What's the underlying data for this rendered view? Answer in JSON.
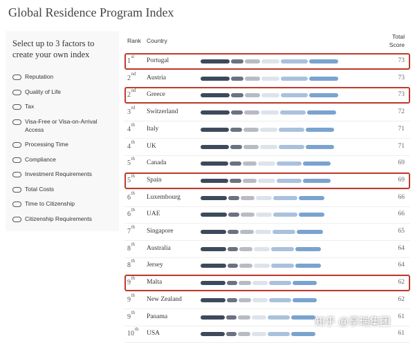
{
  "header": {
    "title": "Global Residence Program Index"
  },
  "sidebar": {
    "heading": "Select up to 3 factors to create your own index",
    "factors": [
      "Reputation",
      "Quality of Life",
      "Tax",
      "Visa-Free or Visa-on-Arrival Access",
      "Processing Time",
      "Compliance",
      "Investment Requirements",
      "Total Costs",
      "Time to Citizenship",
      "Citizenship Requirements"
    ]
  },
  "table": {
    "columns": [
      "Rank",
      "Country",
      "Total Score"
    ],
    "rows": [
      {
        "rank": "1",
        "suffix": "st",
        "country": "Portugal",
        "score": 73,
        "highlighted": true
      },
      {
        "rank": "2",
        "suffix": "nd",
        "country": "Austria",
        "score": 73,
        "highlighted": false
      },
      {
        "rank": "2",
        "suffix": "nd",
        "country": "Greece",
        "score": 73,
        "highlighted": true
      },
      {
        "rank": "3",
        "suffix": "rd",
        "country": "Switzerland",
        "score": 72,
        "highlighted": false
      },
      {
        "rank": "4",
        "suffix": "th",
        "country": "Italy",
        "score": 71,
        "highlighted": false
      },
      {
        "rank": "4",
        "suffix": "th",
        "country": "UK",
        "score": 71,
        "highlighted": false
      },
      {
        "rank": "5",
        "suffix": "th",
        "country": "Canada",
        "score": 69,
        "highlighted": false
      },
      {
        "rank": "5",
        "suffix": "th",
        "country": "Spain",
        "score": 69,
        "highlighted": true
      },
      {
        "rank": "6",
        "suffix": "th",
        "country": "Luxembourg",
        "score": 66,
        "highlighted": false
      },
      {
        "rank": "6",
        "suffix": "th",
        "country": "UAE",
        "score": 66,
        "highlighted": false
      },
      {
        "rank": "7",
        "suffix": "th",
        "country": "Singapore",
        "score": 65,
        "highlighted": false
      },
      {
        "rank": "8",
        "suffix": "th",
        "country": "Australia",
        "score": 64,
        "highlighted": false
      },
      {
        "rank": "8",
        "suffix": "th",
        "country": "Jersey",
        "score": 64,
        "highlighted": false
      },
      {
        "rank": "9",
        "suffix": "th",
        "country": "Malta",
        "score": 62,
        "highlighted": true
      },
      {
        "rank": "9",
        "suffix": "th",
        "country": "New Zealand",
        "score": 62,
        "highlighted": false
      },
      {
        "rank": "9",
        "suffix": "th",
        "country": "Panama",
        "score": 61,
        "highlighted": false
      },
      {
        "rank": "10",
        "suffix": "th",
        "country": "USA",
        "score": 61,
        "highlighted": false
      }
    ]
  },
  "watermark": "知乎 @享瑞集团"
}
